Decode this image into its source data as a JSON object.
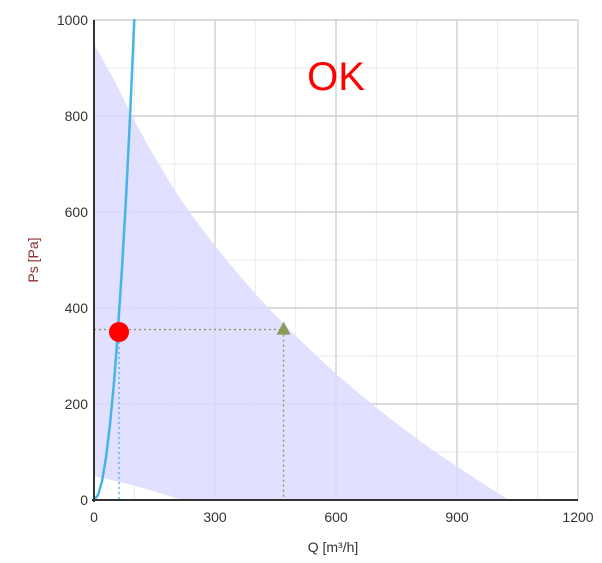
{
  "status_text": "OK",
  "chart_data": {
    "type": "line",
    "xlabel": "Q [m³/h]",
    "ylabel": "Ps [Pa]",
    "xlim": [
      0,
      1200
    ],
    "ylim": [
      0,
      1000
    ],
    "x_ticks": [
      0,
      300,
      600,
      900,
      1200
    ],
    "y_ticks": [
      0,
      200,
      400,
      600,
      800,
      1000
    ],
    "grid": true,
    "series": [
      {
        "type": "area",
        "upper_boundary": [
          {
            "x": 0,
            "y": 950
          },
          {
            "x": 50,
            "y": 875
          },
          {
            "x": 100,
            "y": 790
          },
          {
            "x": 150,
            "y": 715
          },
          {
            "x": 200,
            "y": 645
          },
          {
            "x": 250,
            "y": 585
          },
          {
            "x": 300,
            "y": 530
          },
          {
            "x": 350,
            "y": 478
          },
          {
            "x": 400,
            "y": 430
          },
          {
            "x": 450,
            "y": 385
          },
          {
            "x": 500,
            "y": 342
          },
          {
            "x": 550,
            "y": 302
          },
          {
            "x": 600,
            "y": 263
          },
          {
            "x": 650,
            "y": 227
          },
          {
            "x": 700,
            "y": 192
          },
          {
            "x": 750,
            "y": 160
          },
          {
            "x": 800,
            "y": 128
          },
          {
            "x": 850,
            "y": 98
          },
          {
            "x": 900,
            "y": 70
          },
          {
            "x": 950,
            "y": 42
          },
          {
            "x": 1000,
            "y": 15
          },
          {
            "x": 1030,
            "y": 0
          }
        ],
        "lower_boundary": [
          {
            "x": 0,
            "y": 50
          },
          {
            "x": 50,
            "y": 40
          },
          {
            "x": 100,
            "y": 30
          },
          {
            "x": 150,
            "y": 18
          },
          {
            "x": 200,
            "y": 5
          },
          {
            "x": 220,
            "y": 0
          }
        ]
      },
      {
        "type": "line",
        "curve": [
          {
            "x": 0,
            "y": 0
          },
          {
            "x": 10,
            "y": 10
          },
          {
            "x": 20,
            "y": 40
          },
          {
            "x": 30,
            "y": 90
          },
          {
            "x": 40,
            "y": 160
          },
          {
            "x": 50,
            "y": 250
          },
          {
            "x": 58,
            "y": 338
          },
          {
            "x": 70,
            "y": 490
          },
          {
            "x": 80,
            "y": 640
          },
          {
            "x": 90,
            "y": 810
          },
          {
            "x": 100,
            "y": 1000
          }
        ]
      }
    ],
    "operating_point": {
      "x": 62,
      "y": 350,
      "marker": "circle",
      "color": "#ff0000"
    },
    "design_point": {
      "x": 470,
      "y": 355,
      "marker": "triangle",
      "color": "#8a9a5b"
    },
    "colors": {
      "area_fill": "#dcdcff",
      "curve": "#46b4e6",
      "status_text": "#ff0000",
      "ylabel": "#8b2e2e",
      "xlabel": "#333333",
      "guide_design": "#8a9a5b",
      "guide_operating": "#46b4e6",
      "grid": "#cfcfcf",
      "axis": "#333333"
    }
  }
}
